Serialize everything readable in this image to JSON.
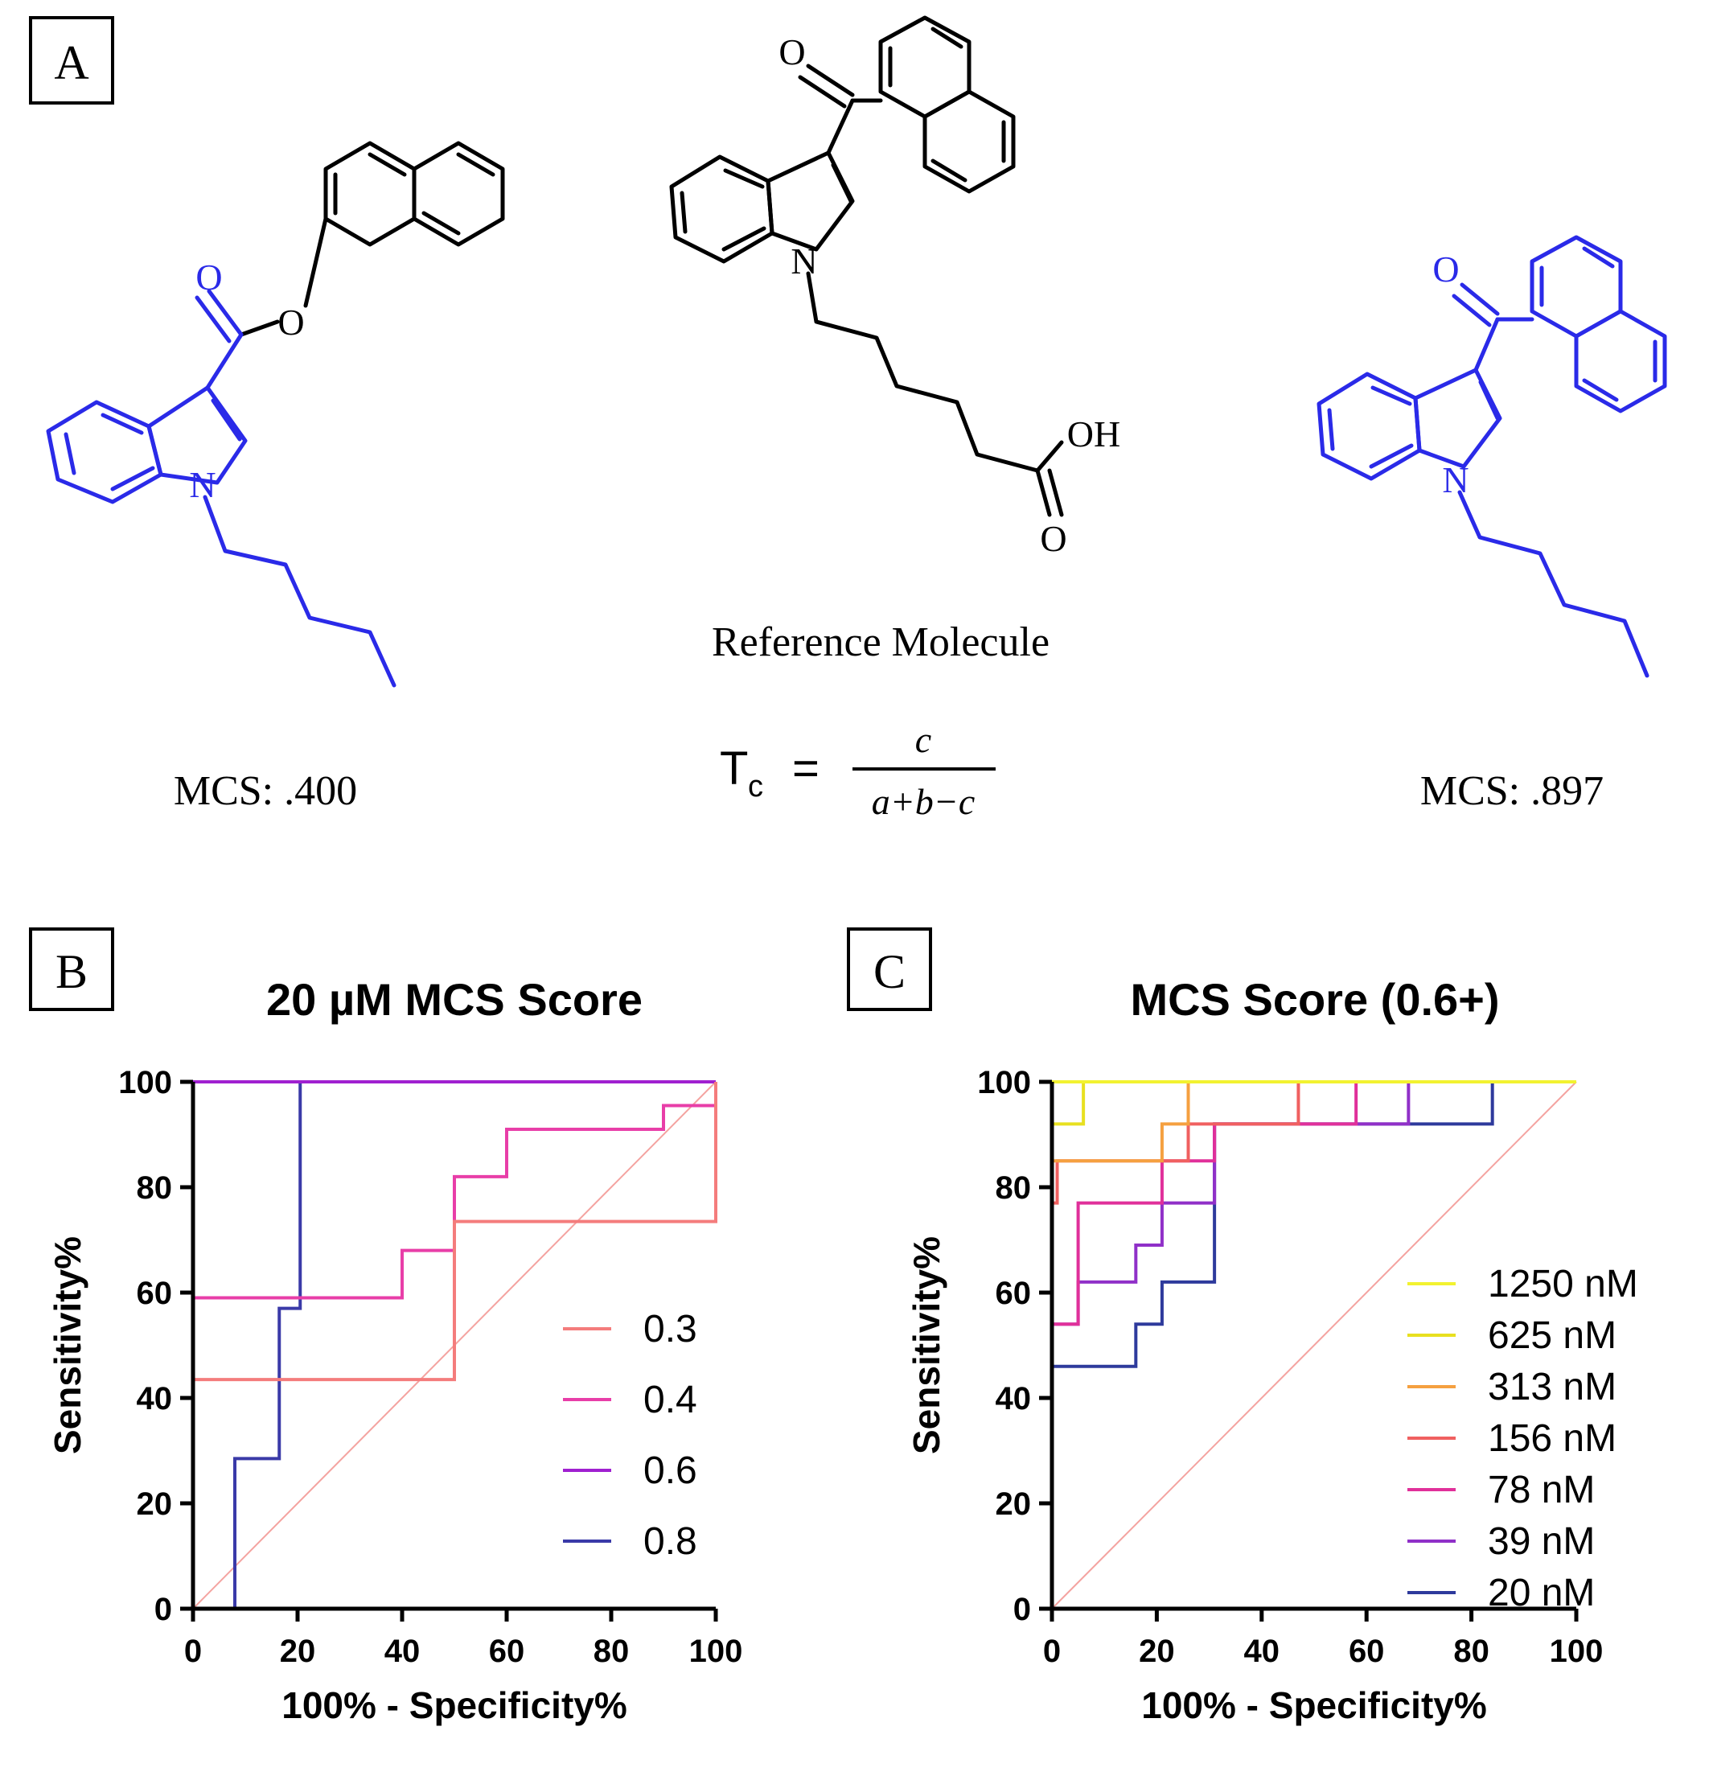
{
  "panels": {
    "a": {
      "label": "A",
      "reference_label": "Reference Molecule",
      "formula": {
        "lhs_main": "T",
        "lhs_sub": "c",
        "eq": "=",
        "numerator": "c",
        "denominator": "a+b−c"
      },
      "left_mcs": "MCS: .400",
      "right_mcs": "MCS: .897",
      "atoms": {
        "oxygen": "O",
        "nitrogen": "N",
        "hydroxyl": "OH"
      }
    },
    "b": {
      "label": "B"
    },
    "c": {
      "label": "C"
    }
  },
  "chart_data": [
    {
      "type": "line",
      "title": "20 µM MCS Score",
      "xlabel": "100% - Specificity%",
      "ylabel": "Sensitivity%",
      "xlim": [
        0,
        100
      ],
      "ylim": [
        0,
        100
      ],
      "xticks": [
        0,
        20,
        40,
        60,
        80,
        100
      ],
      "yticks": [
        0,
        20,
        40,
        60,
        80,
        100
      ],
      "legend_position": "center-right",
      "reference_line": {
        "color": "#f4a3a0",
        "points": [
          [
            0,
            0
          ],
          [
            100,
            100
          ]
        ]
      },
      "series": [
        {
          "name": "0.3",
          "color": "#f47c7c",
          "points": [
            [
              0,
              0
            ],
            [
              0,
              43.5
            ],
            [
              50,
              43.5
            ],
            [
              50,
              73.5
            ],
            [
              100,
              73.5
            ],
            [
              100,
              100
            ]
          ]
        },
        {
          "name": "0.4",
          "color": "#e83ea8",
          "points": [
            [
              0,
              0
            ],
            [
              0,
              59
            ],
            [
              40,
              59
            ],
            [
              40,
              68
            ],
            [
              50,
              68
            ],
            [
              50,
              82
            ],
            [
              60,
              82
            ],
            [
              60,
              91
            ],
            [
              90,
              91
            ],
            [
              90,
              95.5
            ],
            [
              100,
              95.5
            ],
            [
              100,
              100
            ]
          ]
        },
        {
          "name": "0.6",
          "color": "#a020d0",
          "points": [
            [
              0,
              0
            ],
            [
              0,
              100
            ],
            [
              100,
              100
            ]
          ]
        },
        {
          "name": "0.8",
          "color": "#3a3aa8",
          "points": [
            [
              0,
              0
            ],
            [
              8,
              0
            ],
            [
              8,
              28.5
            ],
            [
              16.5,
              28.5
            ],
            [
              16.5,
              57
            ],
            [
              20.5,
              57
            ],
            [
              20.5,
              100
            ],
            [
              100,
              100
            ]
          ]
        }
      ]
    },
    {
      "type": "line",
      "title": "MCS Score (0.6+)",
      "xlabel": "100% - Specificity%",
      "ylabel": "Sensitivity%",
      "xlim": [
        0,
        100
      ],
      "ylim": [
        0,
        100
      ],
      "xticks": [
        0,
        20,
        40,
        60,
        80,
        100
      ],
      "yticks": [
        0,
        20,
        40,
        60,
        80,
        100
      ],
      "legend_position": "center-right",
      "reference_line": {
        "color": "#f4a3a0",
        "points": [
          [
            0,
            0
          ],
          [
            100,
            100
          ]
        ]
      },
      "series": [
        {
          "name": "1250 nM",
          "color": "#f2f230",
          "points": [
            [
              0,
              0
            ],
            [
              0,
              100
            ],
            [
              100,
              100
            ]
          ]
        },
        {
          "name": "625 nM",
          "color": "#e8e020",
          "points": [
            [
              0,
              0
            ],
            [
              0,
              92
            ],
            [
              6,
              92
            ],
            [
              6,
              100
            ],
            [
              100,
              100
            ]
          ]
        },
        {
          "name": "313 nM",
          "color": "#f5a040",
          "points": [
            [
              0,
              0
            ],
            [
              0,
              85
            ],
            [
              21,
              85
            ],
            [
              21,
              92
            ],
            [
              26,
              92
            ],
            [
              26,
              100
            ],
            [
              100,
              100
            ]
          ]
        },
        {
          "name": "156 nM",
          "color": "#f06060",
          "points": [
            [
              0,
              0
            ],
            [
              0,
              77
            ],
            [
              1,
              77
            ],
            [
              1,
              85
            ],
            [
              26,
              85
            ],
            [
              26,
              92
            ],
            [
              47,
              92
            ],
            [
              47,
              100
            ],
            [
              100,
              100
            ]
          ]
        },
        {
          "name": "78 nM",
          "color": "#e0309a",
          "points": [
            [
              0,
              0
            ],
            [
              0,
              54
            ],
            [
              5,
              54
            ],
            [
              5,
              77
            ],
            [
              21,
              77
            ],
            [
              21,
              85
            ],
            [
              31,
              85
            ],
            [
              31,
              92
            ],
            [
              58,
              92
            ],
            [
              58,
              100
            ],
            [
              100,
              100
            ]
          ]
        },
        {
          "name": "39 nM",
          "color": "#9030c8",
          "points": [
            [
              0,
              0
            ],
            [
              0,
              54
            ],
            [
              5,
              54
            ],
            [
              5,
              62
            ],
            [
              16,
              62
            ],
            [
              16,
              69
            ],
            [
              21,
              69
            ],
            [
              21,
              77
            ],
            [
              31,
              77
            ],
            [
              31,
              92
            ],
            [
              68,
              92
            ],
            [
              68,
              100
            ],
            [
              100,
              100
            ]
          ]
        },
        {
          "name": "20 nM",
          "color": "#2e3a9c",
          "points": [
            [
              0,
              0
            ],
            [
              0,
              46
            ],
            [
              16,
              46
            ],
            [
              16,
              54
            ],
            [
              21,
              54
            ],
            [
              21,
              62
            ],
            [
              31,
              62
            ],
            [
              31,
              92
            ],
            [
              84,
              92
            ],
            [
              84,
              100
            ],
            [
              100,
              100
            ]
          ]
        }
      ]
    }
  ]
}
